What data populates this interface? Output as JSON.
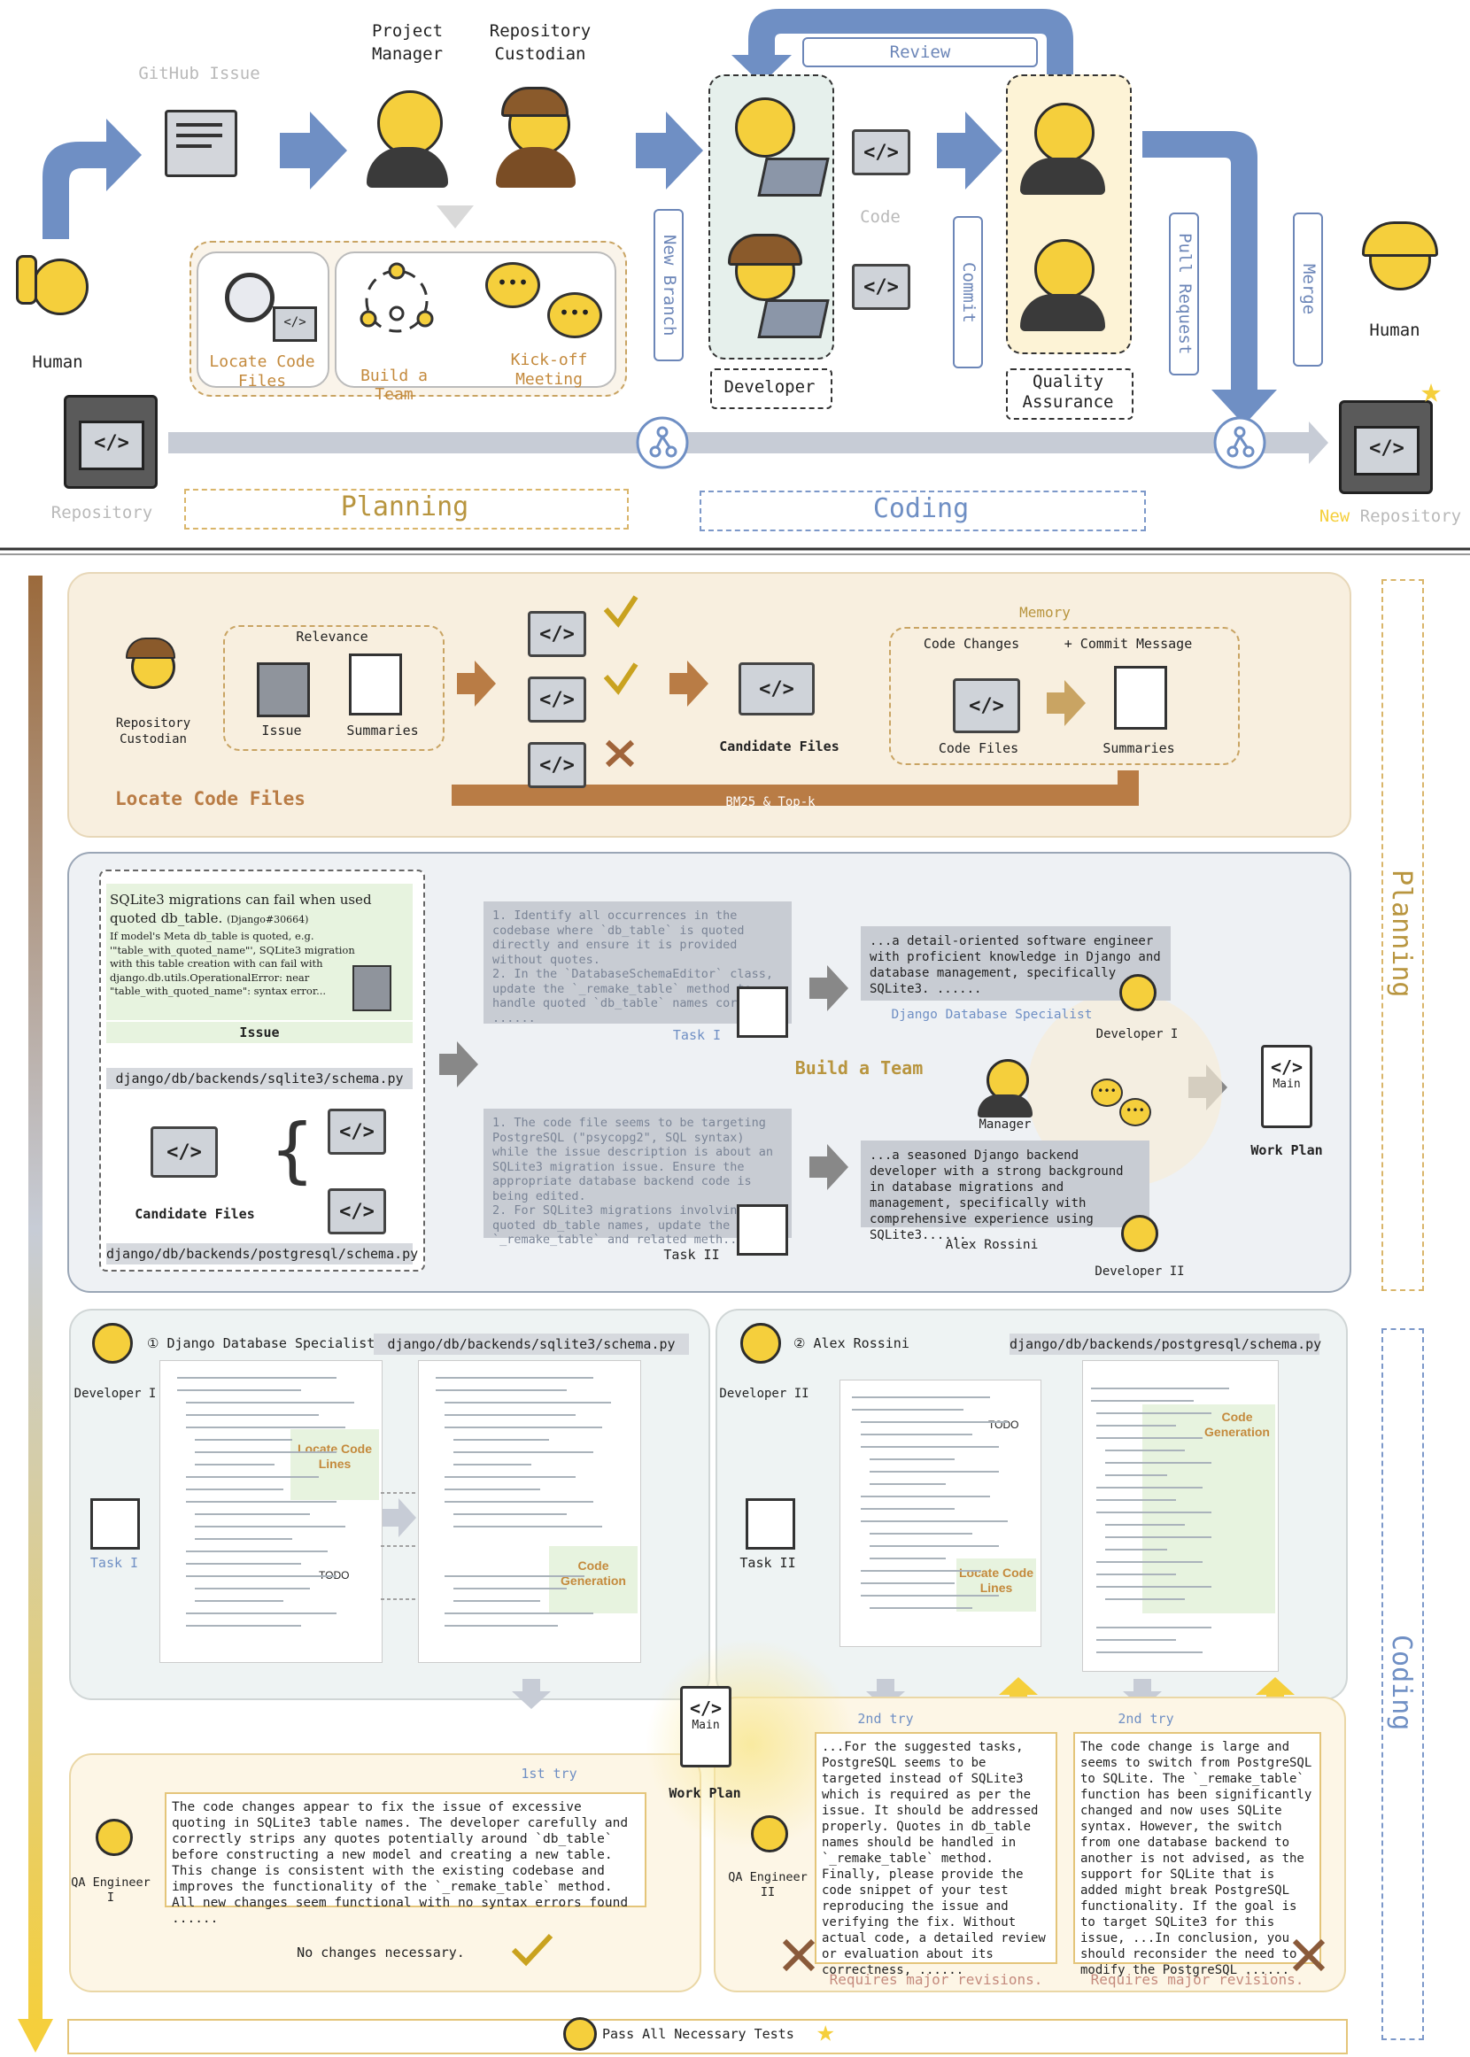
{
  "top": {
    "project_manager": "Project Manager",
    "repository_custodian": "Repository Custodian",
    "github_issue": "GitHub Issue",
    "human_left": "Human",
    "human_right": "Human",
    "review": "Review",
    "code": "Code",
    "new_branch": "New Branch",
    "commit": "Commit",
    "pull_request": "Pull Request",
    "merge": "Merge",
    "developer": "Developer",
    "quality_assurance": "Quality Assurance",
    "locate_code_files": "Locate Code Files",
    "build_a_team": "Build a Team",
    "kick_off_meeting": "Kick-off Meeting",
    "repository": "Repository",
    "new_word": "New",
    "new_repository_rest": "Repository",
    "planning": "Planning",
    "coding": "Coding"
  },
  "locate": {
    "repo_custodian": "Repository Custodian",
    "relevance": "Relevance",
    "issue": "Issue",
    "summaries": "Summaries",
    "candidate_files": "Candidate Files",
    "memory": "Memory",
    "code_changes": "Code Changes",
    "commit_message": "+ Commit Message",
    "code_files": "Code Files",
    "summaries2": "Summaries",
    "bm25": "BM25 & Top-k",
    "title": "Locate Code Files"
  },
  "team": {
    "issue_title": "SQLite3 migrations can fail when used quoted db_table.",
    "issue_ref": "(Django#30664)",
    "issue_body": "If model's Meta db_table is quoted, e.g. '\"table_with_quoted_name\"', SQLite3 migration with this table creation with can fail with django.db.utils.OperationalError: near \"table_with_quoted_name\": syntax error...",
    "issue_label": "Issue",
    "file1": "django/db/backends/sqlite3/schema.py",
    "file2": "django/db/backends/postgresql/schema.py",
    "candidate_files": "Candidate Files",
    "task1_text": "1. Identify all occurrences in the codebase where `db_table` is quoted directly and ensure it is provided without quotes.\n2. In the `DatabaseSchemaEditor` class, update the `_remake_table` method to handle quoted `db_table` names correctly ......",
    "task2_text": "1. The code file seems to be targeting PostgreSQL (\"psycopg2\", SQL syntax) while the issue description is about an SQLite3 migration issue. Ensure the appropriate database backend code is being edited.\n2. For SQLite3 migrations involving quoted db_table names, update the `_remake_table` and related meth...",
    "task1_label": "Task I",
    "task2_label": "Task II",
    "dev1_desc": "...a detail-oriented software engineer with proficient knowledge in Django and database management, specifically SQLite3. ......",
    "dev1_name": "Django Database Specialist",
    "dev1_label": "Developer I",
    "dev2_desc": "...a seasoned Django backend developer with a strong background in database migrations and management, specifically with comprehensive experience using SQLite3......",
    "dev2_name": "Alex Rossini",
    "dev2_label": "Developer II",
    "build_team": "Build a Team",
    "manager": "Manager",
    "main": "Main",
    "work_plan": "Work Plan"
  },
  "coding": {
    "left_header": "① Django Database Specialist",
    "left_file": "django/db/backends/sqlite3/schema.py",
    "developer1": "Developer I",
    "task1": "Task I",
    "locate_code_lines": "Locate Code Lines",
    "todo": "TODO",
    "code_generation": "Code Generation",
    "right_header": "② Alex Rossini",
    "right_file": "django/db/backends/postgresql/schema.py",
    "developer2": "Developer II",
    "task2": "Task II",
    "try1": "1st try",
    "try2": "2nd try",
    "qa1": "QA Engineer I",
    "qa2": "QA Engineer II",
    "qa1_text": "The code changes appear to fix the issue of excessive quoting in SQLite3 table names. The developer carefully and correctly strips any quotes potentially around `db_table` before constructing a new model and creating a new table. This change is consistent with the existing codebase and improves the functionality of the `_remake_table` method. All new changes seem functional with no syntax errors found ......",
    "no_changes": "No changes necessary.",
    "qa2_try1_text": "...For the suggested tasks, PostgreSQL seems to be targeted instead of SQLite3 which is required as per the issue. It should be addressed properly. Quotes in db_table names should be handled in `_remake_table` method. Finally, please provide the code snippet of your test reproducing the issue and verifying the fix. Without actual code, a detailed review or evaluation about its correctness, ......",
    "qa2_try2_text": "The code change is large and seems to switch from PostgreSQL to SQLite. The `_remake_table` function has been significantly changed and now uses SQLite syntax. However, the switch from one database backend to another is not advised, as the support for SQLite that is added might break PostgreSQL functionality. If the goal is to target SQLite3 for this issue, ...In conclusion, you should reconsider the need to modify the PostgreSQL ......",
    "requires_major": "Requires major revisions.",
    "main": "Main",
    "work_plan": "Work Plan",
    "pass_all": "Pass All Necessary Tests"
  },
  "side": {
    "planning": "Planning",
    "coding": "Coding"
  },
  "colors": {
    "blue_arrow": "#6f8fc4",
    "planning_bg": "#f7efe1",
    "brown_arrow": "#b97c45",
    "yellow": "#f5cf3c"
  }
}
